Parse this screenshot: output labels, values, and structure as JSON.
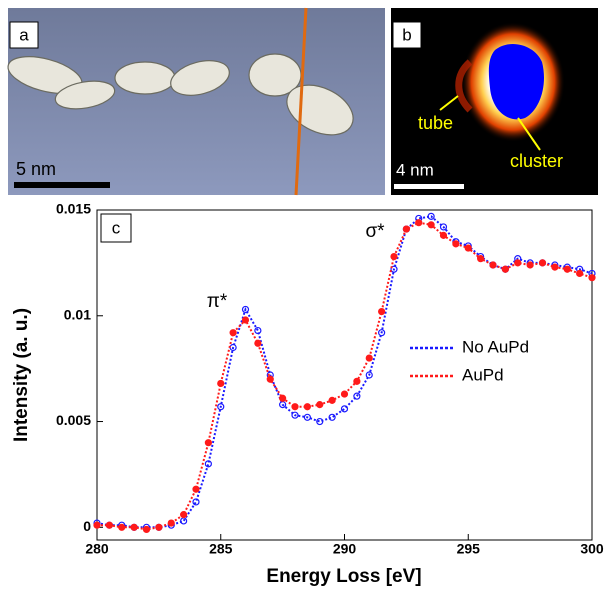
{
  "panel_a": {
    "label": "a",
    "scale": "5 nm"
  },
  "panel_b": {
    "label": "b",
    "tube": "tube",
    "cluster": "cluster",
    "scale": "4 nm"
  },
  "chart_data": {
    "type": "line",
    "panel_label": "c",
    "xlabel": "Energy Loss [eV]",
    "ylabel": "Intensity (a. u.)",
    "annotations": [
      "σ*",
      "π*"
    ],
    "xlim": [
      280,
      300
    ],
    "ylim": [
      -0.0006,
      0.015
    ],
    "xticks": [
      280,
      285,
      290,
      295,
      300
    ],
    "yticks": [
      0,
      0.005,
      0.01,
      0.015
    ],
    "x": [
      280,
      280.5,
      281,
      281.5,
      282,
      282.5,
      283,
      283.5,
      284,
      284.5,
      285,
      285.5,
      286,
      286.5,
      287,
      287.5,
      288,
      288.5,
      289,
      289.5,
      290,
      290.5,
      291,
      291.5,
      292,
      292.5,
      293,
      293.5,
      294,
      294.5,
      295,
      295.5,
      296,
      296.5,
      297,
      297.5,
      298,
      298.5,
      299,
      299.5,
      300
    ],
    "series": [
      {
        "name": "No AuPd",
        "color": "#1a1aff",
        "marker": "open",
        "values": [
          0.0002,
          0.0001,
          0.0001,
          0.0,
          0.0,
          0.0,
          0.0001,
          0.0003,
          0.0012,
          0.003,
          0.0057,
          0.0085,
          0.0103,
          0.0093,
          0.0072,
          0.0058,
          0.0053,
          0.0052,
          0.005,
          0.0052,
          0.0056,
          0.0062,
          0.0072,
          0.0092,
          0.0122,
          0.0141,
          0.0146,
          0.0147,
          0.0142,
          0.0135,
          0.0133,
          0.0128,
          0.0124,
          0.0122,
          0.0127,
          0.0125,
          0.0125,
          0.0124,
          0.0123,
          0.0122,
          0.012
        ]
      },
      {
        "name": "AuPd",
        "color": "#ff1a1a",
        "marker": "filled",
        "values": [
          0.0001,
          0.0001,
          0.0,
          0.0,
          -0.0001,
          0.0,
          0.0002,
          0.0006,
          0.0018,
          0.004,
          0.0068,
          0.0092,
          0.0098,
          0.0087,
          0.007,
          0.0061,
          0.0057,
          0.0057,
          0.0058,
          0.006,
          0.0063,
          0.0069,
          0.008,
          0.0102,
          0.0128,
          0.0141,
          0.0144,
          0.0143,
          0.0138,
          0.0134,
          0.0132,
          0.0127,
          0.0124,
          0.0122,
          0.0125,
          0.0124,
          0.0125,
          0.0123,
          0.0122,
          0.012,
          0.0118
        ]
      }
    ]
  }
}
